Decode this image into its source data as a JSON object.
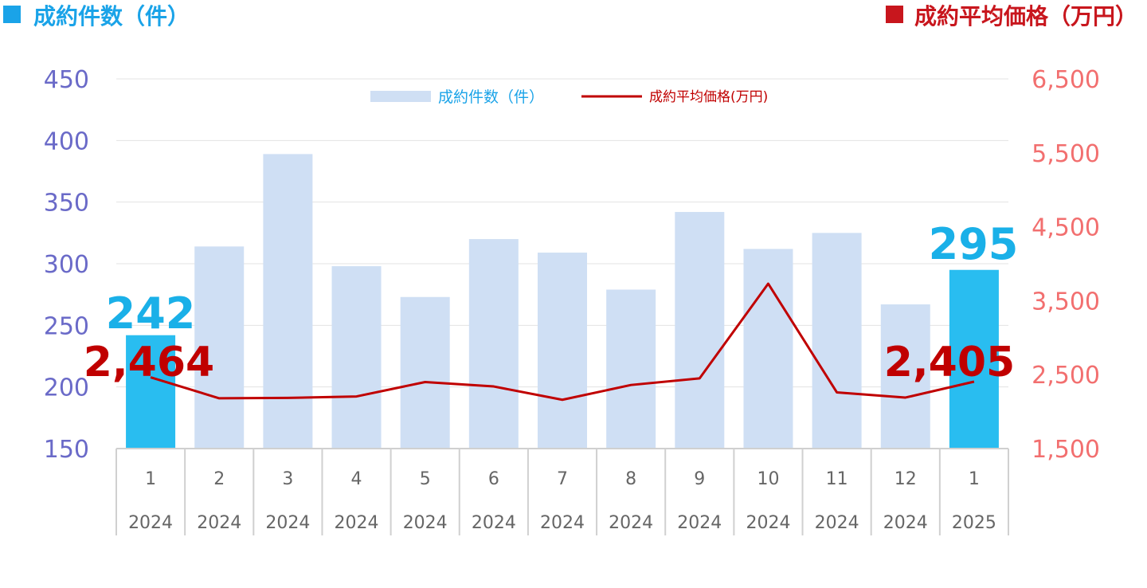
{
  "header": {
    "left_title": "成約件数（件）",
    "right_title": "成約平均価格（万円）",
    "left_color": "#1aa3e8",
    "right_color": "#c8161d"
  },
  "chart_data": {
    "type": "bar",
    "categories": [
      "1",
      "2",
      "3",
      "4",
      "5",
      "6",
      "7",
      "8",
      "9",
      "10",
      "11",
      "12",
      "1"
    ],
    "years": [
      "2024",
      "2024",
      "2024",
      "2024",
      "2024",
      "2024",
      "2024",
      "2024",
      "2024",
      "2024",
      "2024",
      "2024",
      "2025"
    ],
    "series": [
      {
        "name": "成約件数（件）",
        "type": "bar",
        "axis": "left",
        "values": [
          242,
          314,
          389,
          298,
          273,
          320,
          309,
          279,
          342,
          312,
          325,
          267,
          295
        ],
        "color": "#cfdff4",
        "highlight_color": "#29bdf0",
        "highlight_indices": [
          0,
          12
        ]
      },
      {
        "name": "成約平均価格(万円)",
        "type": "line",
        "axis": "right",
        "values": [
          2464,
          2180,
          2185,
          2205,
          2400,
          2340,
          2160,
          2360,
          2450,
          3730,
          2260,
          2190,
          2405
        ],
        "color": "#c00000"
      }
    ],
    "left_axis": {
      "ylim": [
        150,
        450
      ],
      "ticks": [
        "450",
        "400",
        "350",
        "300",
        "250",
        "200",
        "150"
      ]
    },
    "right_axis": {
      "ylim": [
        1500,
        6500
      ],
      "ticks": [
        "6,500",
        "5,500",
        "4,500",
        "3,500",
        "2,500",
        "1,500"
      ]
    },
    "callouts": {
      "first_count": "242",
      "last_count": "295",
      "first_price": "2,464",
      "last_price": "2,405"
    },
    "grid": true,
    "legend_position": "top-center"
  }
}
